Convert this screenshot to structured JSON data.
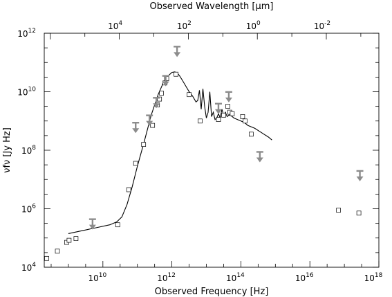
{
  "chart_data": {
    "type": "scatter",
    "title": "",
    "xlabel": "Observed Frequency [Hz]",
    "ylabel": "νfν [Jy Hz]",
    "top_xlabel": "Observed Wavelength [μm]",
    "log_x": true,
    "log_y": true,
    "xlim_log10": [
      8.3,
      18.0
    ],
    "ylim_log10": [
      4.0,
      12.0
    ],
    "x_ticks": [
      {
        "base": "10",
        "exp": "10",
        "value_log10": 10
      },
      {
        "base": "10",
        "exp": "12",
        "value_log10": 12
      },
      {
        "base": "10",
        "exp": "14",
        "value_log10": 14
      },
      {
        "base": "10",
        "exp": "16",
        "value_log10": 16
      },
      {
        "base": "10",
        "exp": "18",
        "value_log10": 18
      }
    ],
    "y_ticks": [
      {
        "base": "10",
        "exp": "4",
        "value_log10": 4
      },
      {
        "base": "10",
        "exp": "6",
        "value_log10": 6
      },
      {
        "base": "10",
        "exp": "8",
        "value_log10": 8
      },
      {
        "base": "10",
        "exp": "10",
        "value_log10": 10
      },
      {
        "base": "10",
        "exp": "12",
        "value_log10": 12
      }
    ],
    "top_ticks": [
      {
        "base": "10",
        "exp": "4",
        "wavelength_um": 10000
      },
      {
        "base": "10",
        "exp": "2",
        "wavelength_um": 100
      },
      {
        "base": "10",
        "exp": "0",
        "wavelength_um": 1
      },
      {
        "base": "10",
        "exp": "-2",
        "wavelength_um": 0.01
      }
    ],
    "series": [
      {
        "kind": "detections",
        "log10_freq": [
          8.37,
          8.68,
          8.95,
          9.02,
          9.22,
          10.43,
          10.75,
          10.95,
          11.18,
          11.44,
          11.58,
          11.64,
          11.7,
          11.8,
          11.85,
          12.12,
          12.5,
          12.82,
          13.35,
          13.5,
          13.62,
          13.68,
          13.75,
          14.05,
          14.12,
          14.3,
          16.83,
          17.42
        ],
        "log10_nufnu": [
          4.3,
          4.55,
          4.85,
          4.92,
          4.98,
          5.45,
          6.65,
          7.55,
          8.2,
          8.85,
          9.55,
          9.75,
          9.95,
          10.3,
          10.45,
          10.6,
          9.9,
          9.0,
          9.05,
          9.2,
          9.5,
          9.3,
          9.25,
          9.15,
          9.0,
          8.55,
          5.95,
          5.85
        ]
      },
      {
        "kind": "upper_limits",
        "log10_freq": [
          9.7,
          10.95,
          11.35,
          11.55,
          11.82,
          12.15,
          13.35,
          13.65,
          14.55,
          17.45
        ],
        "log10_nufnu": [
          5.5,
          8.8,
          9.05,
          9.65,
          10.4,
          11.4,
          9.45,
          9.85,
          7.8,
          7.15
        ]
      },
      {
        "kind": "model",
        "log10_freq": [
          9.0,
          9.4,
          9.8,
          10.2,
          10.4,
          10.55,
          10.7,
          10.85,
          11.0,
          11.2,
          11.4,
          11.6,
          11.75,
          11.9,
          12.0,
          12.08,
          12.15,
          12.22,
          12.3,
          12.4,
          12.5,
          12.6,
          12.7,
          12.75,
          12.8,
          12.85,
          12.9,
          12.95,
          13.0,
          13.05,
          13.1,
          13.15,
          13.2,
          13.25,
          13.3,
          13.35,
          13.4,
          13.45,
          13.5,
          13.55,
          13.6,
          13.65,
          13.7,
          13.8,
          13.9,
          14.0,
          14.1,
          14.2,
          14.4,
          14.6,
          14.8,
          14.9
        ],
        "log10_nufnu": [
          5.15,
          5.25,
          5.35,
          5.45,
          5.55,
          5.72,
          6.15,
          6.75,
          7.45,
          8.3,
          9.2,
          9.9,
          10.3,
          10.55,
          10.66,
          10.68,
          10.65,
          10.55,
          10.4,
          10.2,
          10.0,
          9.85,
          9.65,
          9.7,
          10.05,
          9.4,
          10.1,
          9.5,
          9.1,
          9.3,
          10.0,
          9.15,
          9.3,
          9.05,
          9.1,
          9.25,
          9.1,
          9.4,
          9.2,
          9.3,
          9.15,
          9.2,
          9.2,
          9.1,
          9.05,
          9.0,
          8.95,
          8.85,
          8.75,
          8.6,
          8.45,
          8.35
        ]
      }
    ]
  }
}
